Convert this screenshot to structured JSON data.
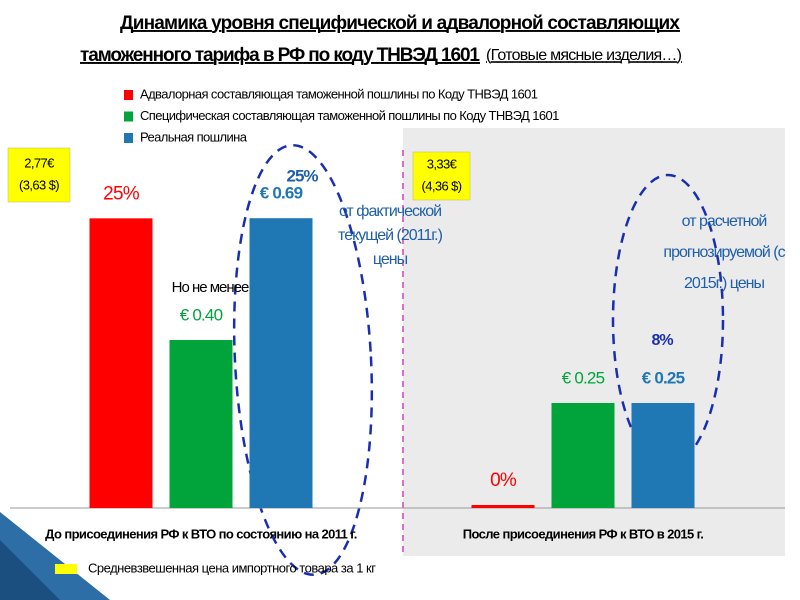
{
  "chart_data": {
    "type": "bar",
    "title": [
      "Динамика уровня специфической и адвалорной составляющих",
      "таможенного тарифа в РФ по коду ТНВЭД 1601"
    ],
    "title_note": "(Готовые мясные изделия…)",
    "categories": [
      "До присоединения РФ к ВТО по состоянию на 2011 г.",
      "После присоединения РФ к ВТО в 2015 г."
    ],
    "series": [
      {
        "name": "Адвалорная составляющая таможенной пошлины по Коду ТНВЭД 1601",
        "color": "#ff0000",
        "axis": "y2",
        "values": [
          25,
          0
        ],
        "value_labels": [
          "25%",
          "0%"
        ]
      },
      {
        "name": "Специфическая составляющая таможенной пошлины по Коду ТНВЭД 1601",
        "color": "#00a43a",
        "values": [
          0.4,
          0.25
        ],
        "value_labels": [
          "€ 0.40",
          "€ 0.25"
        ]
      },
      {
        "name": "Реальная пошлина",
        "color": "#1f77b4",
        "values": [
          0.69,
          0.25
        ],
        "value_labels": [
          "€ 0.69",
          "€ 0.25"
        ]
      }
    ],
    "ylim": [
      0,
      0.8
    ],
    "y2lim": [
      0,
      29
    ],
    "price_boxes": [
      [
        "2,77€",
        "(3,63 $)"
      ],
      [
        "3,33€",
        "(4,36 $)"
      ]
    ],
    "annotations": [
      {
        "text": "25%"
      },
      {
        "text": "8%"
      },
      {
        "text": "Но не менее"
      },
      {
        "lines": [
          "от фактической",
          "текущей (2011г.)",
          "цены"
        ]
      },
      {
        "lines": [
          "от расчетной",
          "прогнозируемой (с",
          "2015г.) цены"
        ]
      }
    ],
    "reference": {
      "name": "Средневзвешенная цена импортного товара за 1 кг",
      "color": "#ffff00"
    }
  }
}
